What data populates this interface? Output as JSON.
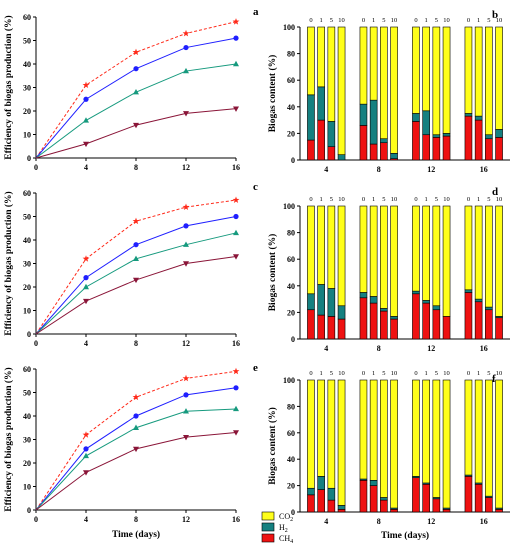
{
  "colors": {
    "red": "#ff2a1a",
    "blue": "#1f1fff",
    "green": "#169a7e",
    "maroon": "#8a1538",
    "co2": "#ffff1a",
    "h2": "#158080",
    "ch4": "#ee1111"
  },
  "legend": {
    "co2": "CO2",
    "h2": "H2",
    "ch4": "CH4"
  },
  "chart_data": [
    {
      "panel": "a",
      "type": "line",
      "ylabel": "Efficiency of biogas production (%)",
      "xlabel": "",
      "xlim": [
        0,
        16
      ],
      "ylim": [
        0,
        60
      ],
      "xticks": [
        0,
        4,
        8,
        12,
        16
      ],
      "yticks": [
        0,
        10,
        20,
        30,
        40,
        50,
        60
      ],
      "x": [
        0,
        4,
        8,
        12,
        16
      ],
      "series": [
        {
          "values": [
            0,
            31,
            45,
            53,
            58
          ],
          "color": "red",
          "marker": "star",
          "dashed": true
        },
        {
          "values": [
            0,
            25,
            38,
            47,
            51
          ],
          "color": "blue",
          "marker": "circle",
          "dashed": false
        },
        {
          "values": [
            0,
            16,
            28,
            37,
            40
          ],
          "color": "green",
          "marker": "triangle-up",
          "dashed": false
        },
        {
          "values": [
            0,
            6,
            14,
            19,
            21
          ],
          "color": "maroon",
          "marker": "triangle-down",
          "dashed": false
        }
      ]
    },
    {
      "panel": "b",
      "type": "bar",
      "stacked": true,
      "ylabel": "Biogas content (%)",
      "xlabel": "",
      "ylim": [
        0,
        100
      ],
      "yticks": [
        0,
        20,
        40,
        60,
        80,
        100
      ],
      "groups": [
        "4",
        "8",
        "12",
        "16"
      ],
      "subgroups": [
        "0",
        "1",
        "5",
        "10"
      ],
      "series": [
        {
          "key": "ch4",
          "values": [
            [
              15,
              30,
              10,
              0
            ],
            [
              26,
              12,
              13,
              1
            ],
            [
              29,
              19,
              17,
              18
            ],
            [
              33,
              30,
              16,
              17
            ]
          ]
        },
        {
          "key": "h2",
          "values": [
            [
              34,
              25,
              19,
              4
            ],
            [
              16,
              33,
              3,
              4
            ],
            [
              6,
              18,
              2,
              2
            ],
            [
              2,
              3,
              3,
              6
            ]
          ]
        },
        {
          "key": "co2",
          "values": [
            [
              51,
              45,
              71,
              96
            ],
            [
              58,
              55,
              84,
              95
            ],
            [
              65,
              63,
              81,
              80
            ],
            [
              65,
              67,
              81,
              77
            ]
          ]
        }
      ]
    },
    {
      "panel": "c",
      "type": "line",
      "ylabel": "Efficiency of biogas production (%)",
      "xlabel": "",
      "xlim": [
        0,
        16
      ],
      "ylim": [
        0,
        60
      ],
      "xticks": [
        0,
        4,
        8,
        12,
        16
      ],
      "yticks": [
        0,
        10,
        20,
        30,
        40,
        50,
        60
      ],
      "x": [
        0,
        4,
        8,
        12,
        16
      ],
      "series": [
        {
          "values": [
            0,
            32,
            48,
            54,
            57
          ],
          "color": "red",
          "marker": "star",
          "dashed": true
        },
        {
          "values": [
            0,
            24,
            38,
            46,
            50
          ],
          "color": "blue",
          "marker": "circle",
          "dashed": false
        },
        {
          "values": [
            0,
            20,
            32,
            38,
            43
          ],
          "color": "green",
          "marker": "triangle-up",
          "dashed": false
        },
        {
          "values": [
            0,
            14,
            23,
            30,
            33
          ],
          "color": "maroon",
          "marker": "triangle-down",
          "dashed": false
        }
      ]
    },
    {
      "panel": "d",
      "type": "bar",
      "stacked": true,
      "ylabel": "Biogas content (%)",
      "xlabel": "",
      "ylim": [
        0,
        100
      ],
      "yticks": [
        0,
        20,
        40,
        60,
        80,
        100
      ],
      "groups": [
        "4",
        "8",
        "12",
        "16"
      ],
      "subgroups": [
        "0",
        "1",
        "5",
        "10"
      ],
      "series": [
        {
          "key": "ch4",
          "values": [
            [
              22,
              18,
              17,
              15
            ],
            [
              31,
              27,
              21,
              15
            ],
            [
              34,
              27,
              22,
              17
            ],
            [
              35,
              28,
              22,
              16
            ]
          ]
        },
        {
          "key": "h2",
          "values": [
            [
              12,
              23,
              21,
              10
            ],
            [
              4,
              5,
              2,
              2
            ],
            [
              2,
              2,
              3,
              0
            ],
            [
              2,
              2,
              2,
              1
            ]
          ]
        },
        {
          "key": "co2",
          "values": [
            [
              66,
              59,
              62,
              75
            ],
            [
              65,
              68,
              77,
              83
            ],
            [
              64,
              71,
              75,
              83
            ],
            [
              63,
              70,
              76,
              83
            ]
          ]
        }
      ]
    },
    {
      "panel": "e",
      "type": "line",
      "ylabel": "Efficiency of biogas production (%)",
      "xlabel": "Time (days)",
      "xlim": [
        0,
        16
      ],
      "ylim": [
        0,
        60
      ],
      "xticks": [
        0,
        4,
        8,
        12,
        16
      ],
      "yticks": [
        0,
        10,
        20,
        30,
        40,
        50,
        60
      ],
      "x": [
        0,
        4,
        8,
        12,
        16
      ],
      "series": [
        {
          "values": [
            0,
            32,
            48,
            56,
            59
          ],
          "color": "red",
          "marker": "star",
          "dashed": true
        },
        {
          "values": [
            0,
            26,
            40,
            49,
            52
          ],
          "color": "blue",
          "marker": "circle",
          "dashed": false
        },
        {
          "values": [
            0,
            23,
            35,
            42,
            43
          ],
          "color": "green",
          "marker": "triangle-up",
          "dashed": false
        },
        {
          "values": [
            0,
            16,
            26,
            31,
            33
          ],
          "color": "maroon",
          "marker": "triangle-down",
          "dashed": false
        }
      ]
    },
    {
      "panel": "f",
      "type": "bar",
      "stacked": true,
      "ylabel": "Biogas content (%)",
      "xlabel": "Time (days)",
      "ylim": [
        0,
        100
      ],
      "yticks": [
        0,
        20,
        40,
        60,
        80,
        100
      ],
      "groups": [
        "4",
        "8",
        "12",
        "16"
      ],
      "subgroups": [
        "0",
        "1",
        "5",
        "10"
      ],
      "series": [
        {
          "key": "ch4",
          "values": [
            [
              13,
              17,
              9,
              2
            ],
            [
              24,
              20,
              9,
              2
            ],
            [
              26,
              21,
              10,
              2
            ],
            [
              27,
              21,
              11,
              2
            ]
          ]
        },
        {
          "key": "h2",
          "values": [
            [
              5,
              10,
              9,
              3
            ],
            [
              1,
              4,
              2,
              1
            ],
            [
              1,
              1,
              1,
              1
            ],
            [
              1,
              1,
              1,
              1
            ]
          ]
        },
        {
          "key": "co2",
          "values": [
            [
              82,
              73,
              82,
              95
            ],
            [
              75,
              76,
              89,
              97
            ],
            [
              73,
              78,
              89,
              97
            ],
            [
              72,
              78,
              88,
              97
            ]
          ]
        }
      ]
    }
  ]
}
